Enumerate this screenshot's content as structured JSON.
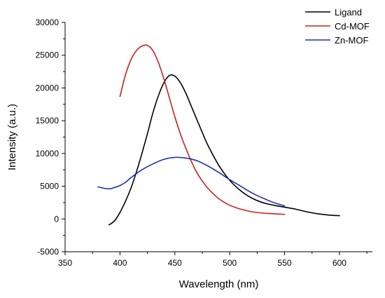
{
  "chart_data": {
    "type": "line",
    "title": "",
    "xlabel": "Wavelength (nm)",
    "ylabel": "Intensity (a.u.)",
    "xlim": [
      350,
      630
    ],
    "ylim": [
      -5000,
      30000
    ],
    "xticks": [
      350,
      400,
      450,
      500,
      550,
      600
    ],
    "yticks": [
      -5000,
      0,
      5000,
      10000,
      15000,
      20000,
      25000,
      30000
    ],
    "grid": false,
    "legend_position": "top-right",
    "series": [
      {
        "name": "Ligand",
        "color": "#000000",
        "x": [
          390,
          395,
          400,
          405,
          410,
          415,
          420,
          425,
          430,
          435,
          440,
          445,
          450,
          455,
          460,
          465,
          470,
          475,
          480,
          490,
          500,
          510,
          520,
          530,
          540,
          550,
          560,
          570,
          580,
          590,
          600
        ],
        "y": [
          -900,
          -300,
          1000,
          2700,
          4700,
          7200,
          10000,
          13000,
          16200,
          18800,
          20800,
          21900,
          21800,
          20800,
          19200,
          17200,
          15200,
          13200,
          11300,
          8200,
          5900,
          4300,
          3200,
          2500,
          2100,
          1800,
          1500,
          1100,
          800,
          600,
          500
        ]
      },
      {
        "name": "Cd-MOF",
        "color": "#cc1f1f",
        "x": [
          400,
          405,
          410,
          415,
          420,
          425,
          430,
          435,
          440,
          445,
          450,
          455,
          460,
          465,
          470,
          475,
          480,
          490,
          500,
          510,
          520,
          530,
          540,
          550
        ],
        "y": [
          18700,
          22000,
          24300,
          25700,
          26400,
          26500,
          25700,
          23900,
          21400,
          18500,
          15600,
          13000,
          10800,
          8800,
          7100,
          5800,
          4700,
          3100,
          2100,
          1500,
          1100,
          900,
          800,
          700
        ]
      },
      {
        "name": "Zn-MOF",
        "color": "#1f2fb5",
        "x": [
          380,
          385,
          390,
          395,
          400,
          405,
          410,
          420,
          430,
          440,
          450,
          460,
          470,
          480,
          490,
          500,
          510,
          520,
          530,
          540,
          550
        ],
        "y": [
          4900,
          4700,
          4600,
          4800,
          5100,
          5600,
          6300,
          7500,
          8400,
          9100,
          9400,
          9300,
          8900,
          8100,
          7100,
          6000,
          5000,
          4000,
          3200,
          2500,
          2000
        ]
      }
    ]
  }
}
